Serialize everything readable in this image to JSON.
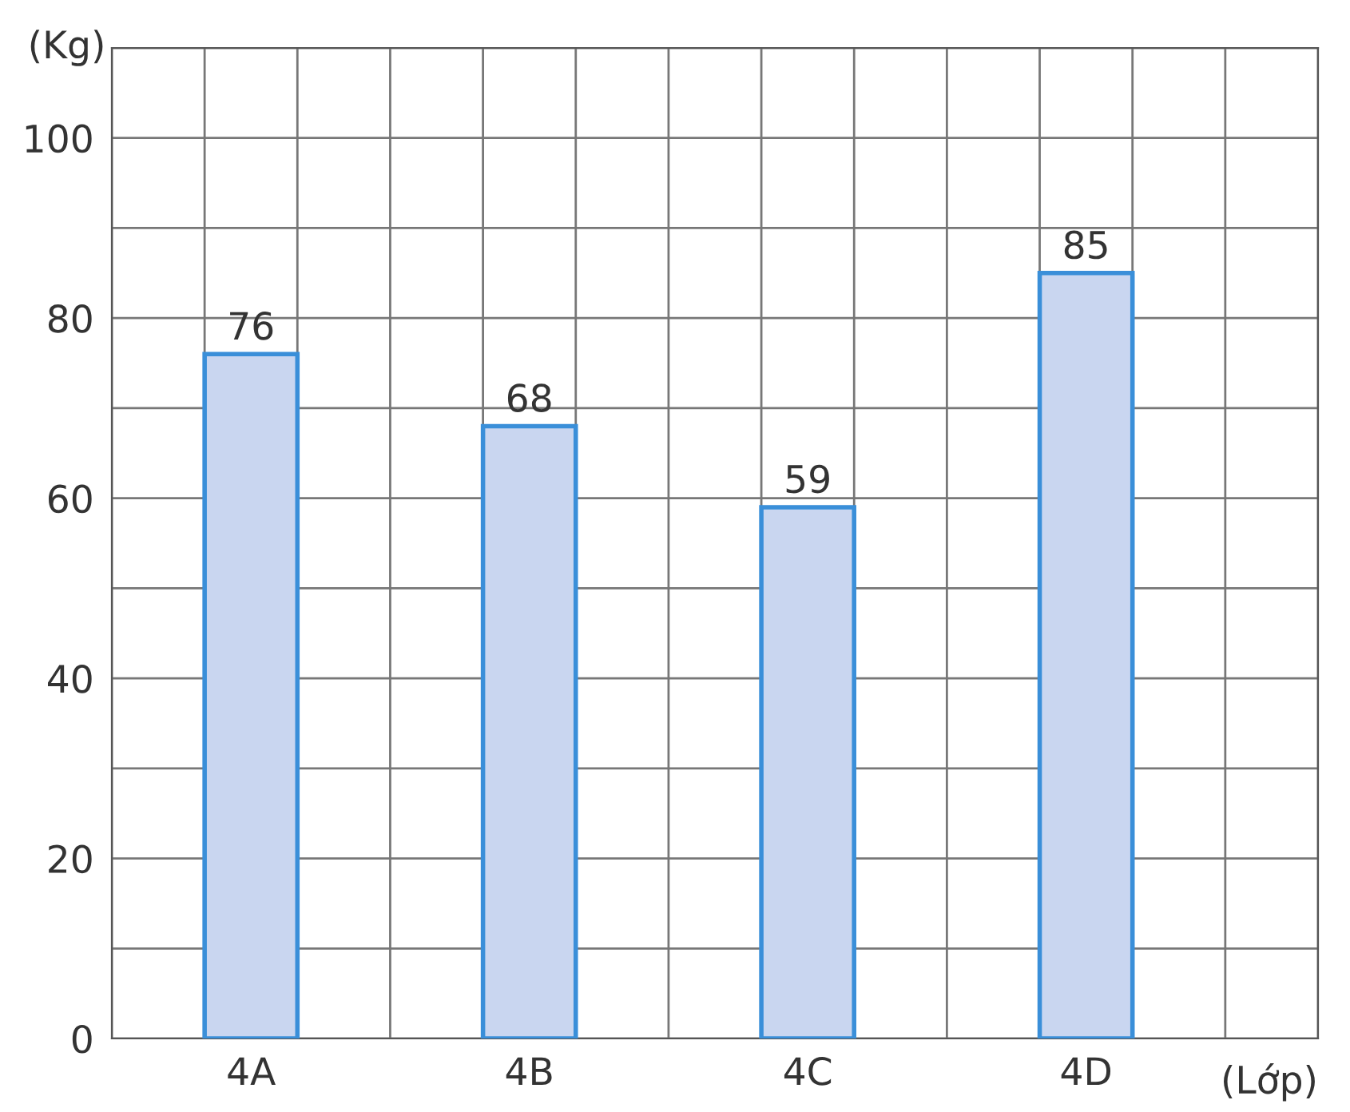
{
  "chart_data": {
    "type": "bar",
    "xlabel": "(Lớp)",
    "ylabel": "(Kg)",
    "categories": [
      "4A",
      "4B",
      "4C",
      "4D"
    ],
    "values": [
      76,
      68,
      59,
      85
    ],
    "color": "#c9d6f0",
    "ylim": [
      0,
      110
    ],
    "yticks": [
      0,
      {
        "value": 10,
        "label": null
      },
      20,
      {
        "value": 30,
        "label": null
      },
      40,
      {
        "value": 50,
        "label": null
      },
      60,
      {
        "value": 70,
        "label": null
      },
      80,
      {
        "value": 90,
        "label": null
      },
      100,
      {
        "value": 110,
        "label": null
      }
    ],
    "grid": true,
    "data_labels": true
  }
}
